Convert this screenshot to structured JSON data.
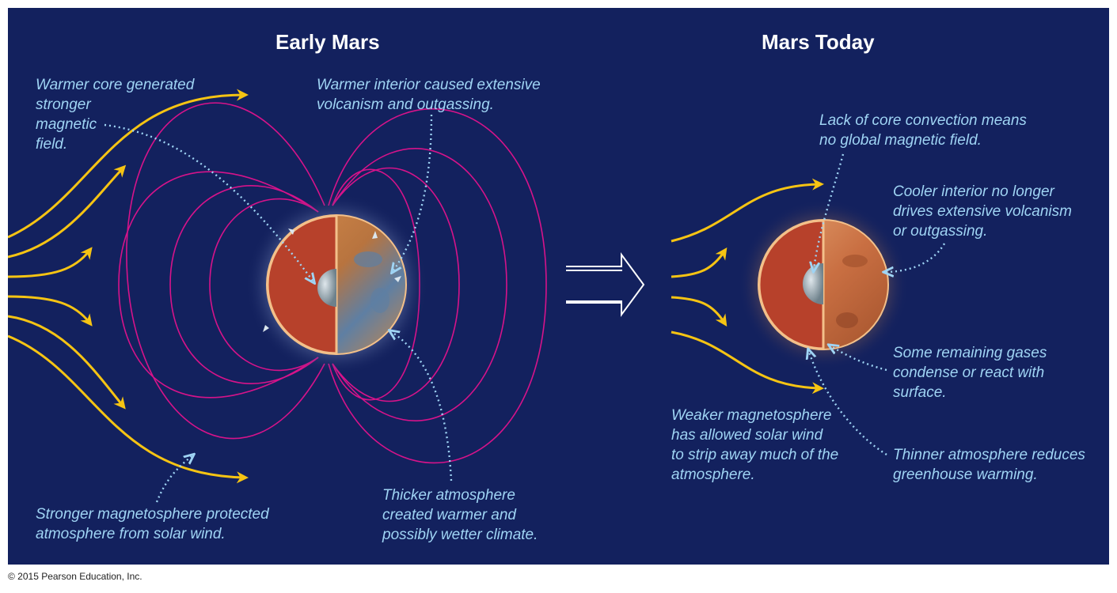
{
  "titles": {
    "early": "Early Mars",
    "today": "Mars Today"
  },
  "early_notes": {
    "core": "Warmer core generated\nstronger\nmagnetic\nfield.",
    "volcanism": "Warmer interior caused extensive\nvolcanism and outgassing.",
    "magnetosphere": "Stronger magnetosphere protected\natmosphere from solar wind.",
    "atmosphere": "Thicker atmosphere\ncreated warmer and\npossibly wetter climate."
  },
  "today_notes": {
    "core": "Lack of core convection means\nno global magnetic field.",
    "interior": "Cooler interior no longer\ndrives extensive volcanism\nor outgassing.",
    "gases": "Some remaining gases\ncondense or react with\nsurface.",
    "magnetosphere": "Weaker magnetosphere\nhas allowed solar wind\nto strip away much of the\natmosphere.",
    "atmosphere": "Thinner atmosphere reduces\ngreenhouse warming."
  },
  "copyright": "© 2015 Pearson Education, Inc.",
  "colors": {
    "background": "#13215e",
    "solar_wind": "#f6c413",
    "field_lines": "#d6138a",
    "callout_text": "#9fd4f4",
    "mars_mantle": "#b7412b",
    "mars_core": "#8fa3ad"
  },
  "icons": {
    "transition_arrow": "hollow-right-arrow",
    "solar_wind": "yellow-curved-arrows",
    "leader_lines": "dotted-arrows"
  }
}
